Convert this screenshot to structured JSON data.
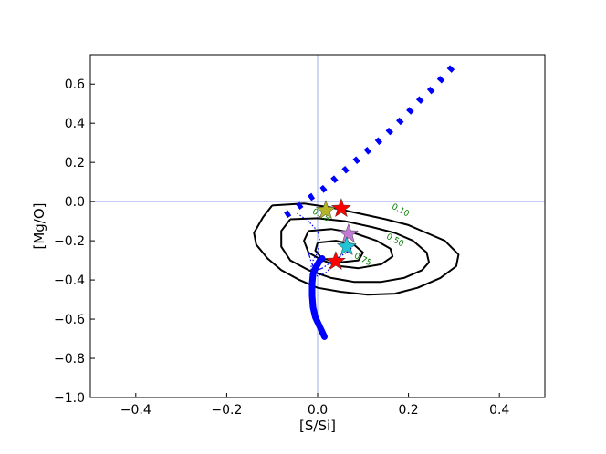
{
  "chart_data": {
    "type": "line",
    "title": "",
    "xlabel": "[S/Si]",
    "ylabel": "[Mg/O]",
    "xlim": [
      -0.5,
      0.5
    ],
    "ylim": [
      -1.0,
      0.75
    ],
    "xticks": [
      -0.4,
      -0.2,
      0.0,
      0.2,
      0.4
    ],
    "yticks": [
      -1.0,
      -0.8,
      -0.6,
      -0.4,
      -0.2,
      0.0,
      0.2,
      0.4,
      0.6
    ],
    "grid": false,
    "reference_lines": {
      "x": 0.0,
      "y": 0.0,
      "color": "#8a9ee8"
    },
    "colors": {
      "dotted_track": "#0000ff",
      "thick_track": "#0000ff",
      "contour": "#000000",
      "contour_label": "#007f00"
    },
    "contour_labels": [
      {
        "text": "0.10",
        "x": 0.18,
        "y": -0.055
      },
      {
        "text": "0.50",
        "x": 0.168,
        "y": -0.208
      },
      {
        "text": "0.75",
        "x": 0.097,
        "y": -0.306
      },
      {
        "text": "0.25",
        "x": 0.005,
        "y": -0.08
      }
    ],
    "series": [
      {
        "style": "dotted-thick",
        "x": [
          -0.07,
          -0.05,
          -0.03,
          -0.01,
          0.01,
          0.03,
          0.05,
          0.07,
          0.09,
          0.11,
          0.13,
          0.15,
          0.17,
          0.19,
          0.21,
          0.23,
          0.25,
          0.27,
          0.29,
          0.31
        ],
        "y": [
          -0.07,
          -0.04,
          -0.005,
          0.03,
          0.06,
          0.1,
          0.14,
          0.18,
          0.22,
          0.26,
          0.3,
          0.34,
          0.385,
          0.43,
          0.48,
          0.53,
          0.57,
          0.62,
          0.67,
          0.72
        ]
      },
      {
        "style": "solid-thick",
        "x": [
          0.015,
          0.005,
          -0.005,
          -0.01,
          -0.012,
          -0.012,
          -0.01,
          -0.005,
          0.0,
          0.005,
          0.01
        ],
        "y": [
          -0.69,
          -0.64,
          -0.59,
          -0.54,
          -0.48,
          -0.42,
          -0.37,
          -0.34,
          -0.32,
          -0.3,
          -0.29
        ]
      },
      {
        "style": "dotted-thin",
        "x": [
          -0.045,
          -0.02,
          0.0,
          0.005,
          0.0,
          -0.01,
          -0.015,
          -0.01,
          0.0,
          0.02,
          0.04,
          0.06,
          0.065
        ],
        "y": [
          -0.06,
          -0.1,
          -0.15,
          -0.2,
          -0.26,
          -0.3,
          -0.34,
          -0.37,
          -0.38,
          -0.36,
          -0.3,
          -0.25,
          -0.21
        ]
      },
      {
        "style": "dashdot-thin",
        "x": [
          -0.02,
          -0.015,
          -0.01,
          0.0,
          0.01,
          0.03,
          0.05,
          0.07,
          0.08
        ],
        "y": [
          -0.26,
          -0.3,
          -0.33,
          -0.35,
          -0.34,
          -0.31,
          -0.28,
          -0.25,
          -0.22
        ]
      }
    ],
    "contours": [
      {
        "level": "outer",
        "x": [
          -0.1,
          -0.03,
          0.03,
          0.09,
          0.15,
          0.2,
          0.24,
          0.28,
          0.31,
          0.305,
          0.27,
          0.22,
          0.17,
          0.11,
          0.05,
          0.0,
          -0.04,
          -0.08,
          -0.11,
          -0.135,
          -0.14,
          -0.12,
          -0.1
        ],
        "y": [
          -0.02,
          -0.01,
          -0.03,
          -0.06,
          -0.09,
          -0.12,
          -0.16,
          -0.2,
          -0.27,
          -0.33,
          -0.39,
          -0.44,
          -0.47,
          -0.475,
          -0.46,
          -0.44,
          -0.4,
          -0.35,
          -0.29,
          -0.22,
          -0.16,
          -0.08,
          -0.02
        ]
      },
      {
        "level": "0.50",
        "x": [
          -0.06,
          0.0,
          0.06,
          0.12,
          0.17,
          0.21,
          0.24,
          0.245,
          0.23,
          0.19,
          0.14,
          0.08,
          0.03,
          -0.02,
          -0.06,
          -0.08,
          -0.08,
          -0.06
        ],
        "y": [
          -0.09,
          -0.085,
          -0.1,
          -0.13,
          -0.16,
          -0.2,
          -0.26,
          -0.31,
          -0.35,
          -0.39,
          -0.41,
          -0.41,
          -0.39,
          -0.35,
          -0.3,
          -0.23,
          -0.15,
          -0.09
        ]
      },
      {
        "level": "0.75",
        "x": [
          -0.02,
          0.03,
          0.08,
          0.13,
          0.16,
          0.165,
          0.14,
          0.09,
          0.05,
          0.01,
          -0.02,
          -0.03,
          -0.02
        ],
        "y": [
          -0.15,
          -0.14,
          -0.16,
          -0.2,
          -0.24,
          -0.28,
          -0.32,
          -0.34,
          -0.33,
          -0.3,
          -0.26,
          -0.2,
          -0.15
        ]
      },
      {
        "level": "inner",
        "x": [
          0.0,
          0.04,
          0.08,
          0.1,
          0.09,
          0.05,
          0.01,
          -0.005,
          0.0
        ],
        "y": [
          -0.21,
          -0.2,
          -0.22,
          -0.26,
          -0.3,
          -0.31,
          -0.29,
          -0.25,
          -0.21
        ]
      }
    ],
    "markers": [
      {
        "x": 0.052,
        "y": -0.035,
        "color": "#ff0000"
      },
      {
        "x": 0.018,
        "y": -0.045,
        "color": "#b5b527"
      },
      {
        "x": 0.068,
        "y": -0.165,
        "color": "#c27ad6"
      },
      {
        "x": 0.064,
        "y": -0.23,
        "color": "#1fc5d6"
      },
      {
        "x": 0.04,
        "y": -0.305,
        "color": "#ff0000"
      }
    ]
  }
}
